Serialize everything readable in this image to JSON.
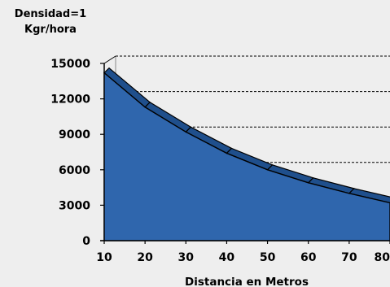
{
  "chart_data": {
    "type": "area",
    "ylabel_lines": [
      "Densidad=1",
      "Kgr/hora"
    ],
    "xlabel": "Distancia en Metros",
    "x": [
      10,
      20,
      30,
      40,
      50,
      60,
      70,
      80
    ],
    "series": [
      {
        "values": [
          14200,
          11300,
          9200,
          7400,
          6000,
          4900,
          4000,
          3200
        ]
      }
    ],
    "xlim": [
      10,
      80
    ],
    "ylim": [
      0,
      15000
    ],
    "x_ticks": [
      "10",
      "20",
      "30",
      "40",
      "50",
      "60",
      "70",
      "80"
    ],
    "y_ticks": [
      "0",
      "3000",
      "6000",
      "9000",
      "12000",
      "15000"
    ],
    "grid": "horizontal dashed",
    "style": "3d-area",
    "colors": {
      "area": "#2f66ad",
      "edge": "#000000",
      "top_band": "#1f4f8c"
    }
  }
}
